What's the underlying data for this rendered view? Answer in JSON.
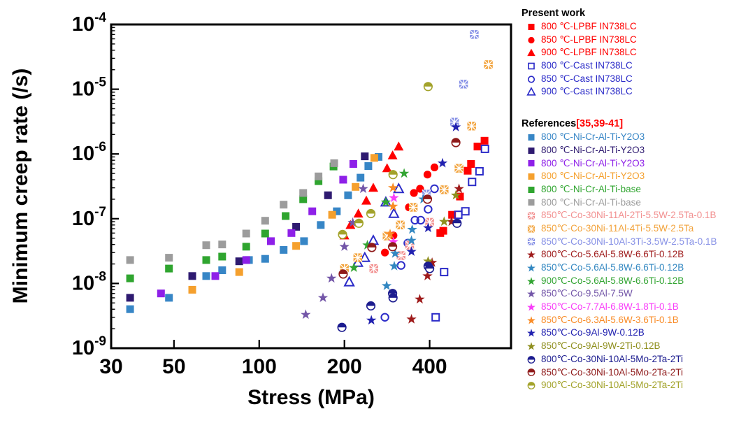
{
  "chart_data": {
    "type": "scatter",
    "title": "",
    "xlabel": "Stress (MPa)",
    "ylabel": "Minimum creep rate (/s)",
    "x_scale": "log",
    "y_scale": "log",
    "xlim": [
      30,
      768
    ],
    "ylim": [
      1e-09,
      0.0001
    ],
    "x_ticks": [
      30,
      50,
      100,
      200,
      400
    ],
    "y_tick_exponents": [
      -4,
      -5,
      -6,
      -7,
      -8,
      -9
    ],
    "grid": false,
    "legend_position": "right-outside",
    "series": [
      {
        "label": "800 ℃-LPBF IN738LC",
        "marker": "fsquare",
        "color": "#FF0000",
        "points": [
          [
            436,
            6e-08
          ],
          [
            447,
            6.5e-08
          ],
          [
            480,
            1.15e-07
          ],
          [
            512,
            2.2e-07
          ],
          [
            545,
            5.5e-07
          ],
          [
            560,
            7e-07
          ],
          [
            590,
            1.3e-06
          ],
          [
            625,
            1.6e-06
          ]
        ]
      },
      {
        "label": "850 ℃-LPBF IN738LC",
        "marker": "fcircle",
        "color": "#FF0000",
        "points": [
          [
            278,
            3e-08
          ],
          [
            298,
            5.5e-08
          ],
          [
            338,
            1.5e-07
          ],
          [
            352,
            2.5e-07
          ],
          [
            370,
            2.9e-07
          ],
          [
            393,
            4.8e-07
          ],
          [
            416,
            6.2e-07
          ]
        ]
      },
      {
        "label": "900 ℃-LPBF IN738LC",
        "marker": "ftriangle",
        "color": "#FF0000",
        "points": [
          [
            200,
            5.5e-08
          ],
          [
            210,
            8e-08
          ],
          [
            224,
            1.2e-07
          ],
          [
            239,
            1.9e-07
          ],
          [
            253,
            3e-07
          ],
          [
            283,
            6e-07
          ],
          [
            296,
            9.5e-07
          ],
          [
            311,
            1.3e-06
          ]
        ]
      },
      {
        "label": "800 ℃-Cast IN738LC",
        "marker": "osquare",
        "color": "#2B2BC8",
        "points": [
          [
            420,
            3e-09
          ],
          [
            450,
            1.5e-08
          ],
          [
            505,
            1.15e-07
          ],
          [
            535,
            1.3e-07
          ],
          [
            565,
            3.7e-07
          ],
          [
            600,
            5.4e-07
          ],
          [
            627,
            1.2e-06
          ]
        ]
      },
      {
        "label": "850 ℃-Cast IN738LC",
        "marker": "ocircle",
        "color": "#2B2BC8",
        "points": [
          [
            278,
            3e-09
          ],
          [
            317,
            1.9e-08
          ],
          [
            335,
            4.2e-08
          ],
          [
            355,
            9.5e-08
          ],
          [
            372,
            9.5e-08
          ],
          [
            395,
            1.4e-07
          ],
          [
            416,
            2.9e-07
          ]
        ]
      },
      {
        "label": "900 ℃-Cast IN738LC",
        "marker": "otriangle",
        "color": "#2B2BC8",
        "points": [
          [
            208,
            1.05e-08
          ],
          [
            223,
            2.1e-08
          ],
          [
            236,
            2.5e-08
          ],
          [
            253,
            4.6e-08
          ],
          [
            280,
            1.8e-07
          ],
          [
            299,
            1.2e-07
          ],
          [
            311,
            2.9e-07
          ]
        ]
      },
      {
        "label": "800 ℃-Ni-Cr-Al-Ti-Y2O3",
        "marker": "fsquare",
        "color": "#3786C6",
        "points": [
          [
            35,
            4e-09
          ],
          [
            48,
            6e-09
          ],
          [
            65,
            1.3e-08
          ],
          [
            74,
            1.6e-08
          ],
          [
            92,
            2.3e-08
          ],
          [
            105,
            2.4e-08
          ],
          [
            122,
            3.3e-08
          ],
          [
            144,
            4.5e-08
          ],
          [
            165,
            8e-08
          ],
          [
            188,
            1.3e-07
          ],
          [
            206,
            2.3e-07
          ],
          [
            228,
            4.3e-07
          ],
          [
            243,
            6.5e-07
          ],
          [
            264,
            9e-07
          ]
        ]
      },
      {
        "label": "800 ℃-Ni-Cr-Al-Ti-Y2O3",
        "marker": "fsquare",
        "color": "#2E1A70",
        "points": [
          [
            35,
            6e-09
          ],
          [
            58,
            1.3e-08
          ],
          [
            85,
            2.2e-08
          ],
          [
            135,
            7.5e-08
          ],
          [
            175,
            2.3e-07
          ],
          [
            236,
            9.2e-07
          ]
        ]
      },
      {
        "label": "800 ℃-Ni-Cr-Al-Ti-Y2O3",
        "marker": "fsquare",
        "color": "#8E20E8",
        "points": [
          [
            45,
            7e-09
          ],
          [
            70,
            1.3e-08
          ],
          [
            90,
            2.3e-08
          ],
          [
            110,
            4.5e-08
          ],
          [
            130,
            6e-08
          ],
          [
            154,
            1.3e-07
          ],
          [
            198,
            4e-07
          ],
          [
            215,
            7e-07
          ]
        ]
      },
      {
        "label": "800 ℃-Ni-Cr-Al-Ti-Y2O3",
        "marker": "fsquare",
        "color": "#F5A02D",
        "points": [
          [
            58,
            8e-09
          ],
          [
            85,
            1.5e-08
          ],
          [
            135,
            3.8e-08
          ],
          [
            181,
            1.15e-07
          ],
          [
            219,
            3.1e-07
          ],
          [
            255,
            8.7e-07
          ]
        ]
      },
      {
        "label": "800 ℃-Ni-Cr-Al-Ti-base",
        "marker": "fsquare",
        "color": "#2FA52F",
        "points": [
          [
            35,
            1.2e-08
          ],
          [
            48,
            1.7e-08
          ],
          [
            65,
            2.3e-08
          ],
          [
            74,
            2.6e-08
          ],
          [
            90,
            3.7e-08
          ],
          [
            105,
            5.9e-08
          ],
          [
            124,
            1.1e-07
          ],
          [
            143,
            2e-07
          ],
          [
            162,
            3.8e-07
          ],
          [
            183,
            6.4e-07
          ]
        ]
      },
      {
        "label": "800 ℃-Ni-Cr-Al-Ti-base",
        "marker": "fsquare",
        "color": "#9C9C9C",
        "points": [
          [
            35,
            2.3e-08
          ],
          [
            48,
            2.5e-08
          ],
          [
            65,
            3.9e-08
          ],
          [
            74,
            4e-08
          ],
          [
            90,
            5.9e-08
          ],
          [
            105,
            9.3e-08
          ],
          [
            122,
            1.65e-07
          ],
          [
            143,
            2.5e-07
          ],
          [
            162,
            4.5e-07
          ],
          [
            184,
            7.2e-07
          ]
        ]
      },
      {
        "label": "850℃-Co-30Ni-11Al-2Ti-5.5W-2.5Ta-0.1B",
        "marker": "xsquare",
        "color": "#F29191",
        "points": [
          [
            254,
            1.7e-08
          ],
          [
            317,
            2.7e-08
          ],
          [
            340,
            3.9e-08
          ],
          [
            400,
            8.8e-08
          ]
        ]
      },
      {
        "label": "850℃-Co-30Ni-11Al-4Ti-5.5W-2.5Ta",
        "marker": "xsquare",
        "color": "#F2A33C",
        "points": [
          [
            200,
            1.7e-08
          ],
          [
            223,
            2.5e-08
          ],
          [
            283,
            5.4e-08
          ],
          [
            315,
            8e-08
          ],
          [
            350,
            1.5e-07
          ],
          [
            450,
            2.8e-07
          ],
          [
            508,
            6e-07
          ],
          [
            563,
            2.7e-06
          ],
          [
            645,
            2.4e-05
          ]
        ]
      },
      {
        "label": "850℃-Co-30Ni-10Al-3Ti-3.5W-2.5Ta-0.1B",
        "marker": "xsquare",
        "color": "#8791E6",
        "points": [
          [
            390,
            2.4e-07
          ],
          [
            490,
            3.1e-06
          ],
          [
            527,
            1.2e-05
          ],
          [
            575,
            7e-05
          ]
        ]
      },
      {
        "label": "800℃-Co-5.6Al-5.8W-6.6Ti-0.12B",
        "marker": "star",
        "color": "#9E1A1A",
        "points": [
          [
            345,
            2.8e-09
          ],
          [
            369,
            5.7e-09
          ],
          [
            393,
            1.3e-08
          ],
          [
            408,
            2.1e-08
          ],
          [
            478,
            9e-08
          ],
          [
            508,
            2.9e-07
          ]
        ]
      },
      {
        "label": "850℃-Co-5.6Al-5.8W-6.6Ti-0.12B",
        "marker": "star",
        "color": "#3287C1",
        "points": [
          [
            282,
            9.2e-09
          ],
          [
            300,
            1.85e-08
          ],
          [
            302,
            2.9e-08
          ],
          [
            345,
            4.6e-08
          ],
          [
            347,
            6.8e-08
          ],
          [
            380,
            2e-07
          ]
        ]
      },
      {
        "label": "900℃-Co-5.6Al-5.8W-6.6Ti-0.12B",
        "marker": "star",
        "color": "#33A533",
        "points": [
          [
            216,
            1.75e-08
          ],
          [
            241,
            3.9e-08
          ],
          [
            280,
            1.8e-07
          ],
          [
            325,
            5e-07
          ]
        ]
      },
      {
        "label": "850℃-Co-9.5Al-7.5W",
        "marker": "star",
        "color": "#7356A8",
        "points": [
          [
            146,
            3.3e-09
          ],
          [
            168,
            6e-09
          ],
          [
            180,
            1.2e-08
          ],
          [
            200,
            3.7e-08
          ],
          [
            214,
            8.7e-08
          ],
          [
            233,
            2.9e-07
          ]
        ]
      },
      {
        "label": "850℃-Co-7.7Al-6.8W-1.8Ti-0.1B",
        "marker": "star",
        "color": "#F93DF9",
        "points": [
          [
            298,
            4.4e-08
          ],
          [
            299,
            2.1e-07
          ]
        ]
      },
      {
        "label": "850℃-Co-6.3Al-5.6W-3.6Ti-0.1B",
        "marker": "star",
        "color": "#F98C28",
        "points": [
          [
            290,
            5.8e-08
          ],
          [
            297,
            1.55e-07
          ],
          [
            297,
            3e-07
          ]
        ]
      },
      {
        "label": "850℃-Co-9Al-9W-0.12B",
        "marker": "star",
        "color": "#2121B0",
        "points": [
          [
            249,
            2.7e-09
          ],
          [
            345,
            3.1e-08
          ],
          [
            395,
            7.2e-08
          ],
          [
            444,
            7.2e-07
          ],
          [
            495,
            2.6e-06
          ]
        ]
      },
      {
        "label": "850℃-Co-9Al-9W-2Ti-0.12B",
        "marker": "star",
        "color": "#8F8F1E",
        "points": [
          [
            395,
            2.2e-08
          ],
          [
            450,
            9e-08
          ],
          [
            495,
            2.3e-07
          ]
        ]
      },
      {
        "label": "800℃-Co-30Ni-10Al-5Mo-2Ta-2Ti",
        "marker": "hcircle",
        "color": "#1C1C8F",
        "points": [
          [
            196,
            2.1e-09
          ],
          [
            248,
            4.5e-09
          ],
          [
            296,
            7e-09
          ],
          [
            297,
            6e-09
          ],
          [
            395,
            1.85e-08
          ],
          [
            400,
            1.7e-08
          ],
          [
            500,
            8.5e-08
          ]
        ]
      },
      {
        "label": "850℃-Co-30Ni-10Al-5Mo-2Ta-2Ti",
        "marker": "hcircle",
        "color": "#8F1A1A",
        "points": [
          [
            198,
            1.4e-08
          ],
          [
            250,
            3.6e-08
          ],
          [
            296,
            3.7e-08
          ],
          [
            393,
            2e-07
          ],
          [
            495,
            1.5e-06
          ]
        ]
      },
      {
        "label": "900℃-Co-30Ni-10Al-5Mo-2Ta-2Ti",
        "marker": "hcircle",
        "color": "#A3A32B",
        "points": [
          [
            197,
            5.7e-08
          ],
          [
            225,
            8.5e-08
          ],
          [
            248,
            1.2e-07
          ],
          [
            297,
            4.8e-07
          ],
          [
            395,
            1.1e-05
          ]
        ]
      }
    ]
  },
  "legend": {
    "groups": [
      {
        "title": "Present work",
        "series": [
          0,
          1,
          2,
          3,
          4,
          5
        ]
      },
      {
        "title": "References",
        "title_suffix": "[35,39-41]",
        "suffix_color": "#FF0000",
        "series": [
          6,
          7,
          8,
          9,
          10,
          11,
          12,
          13,
          14,
          15,
          16,
          17,
          18,
          19,
          20,
          21,
          22,
          23,
          24,
          25
        ]
      }
    ]
  }
}
